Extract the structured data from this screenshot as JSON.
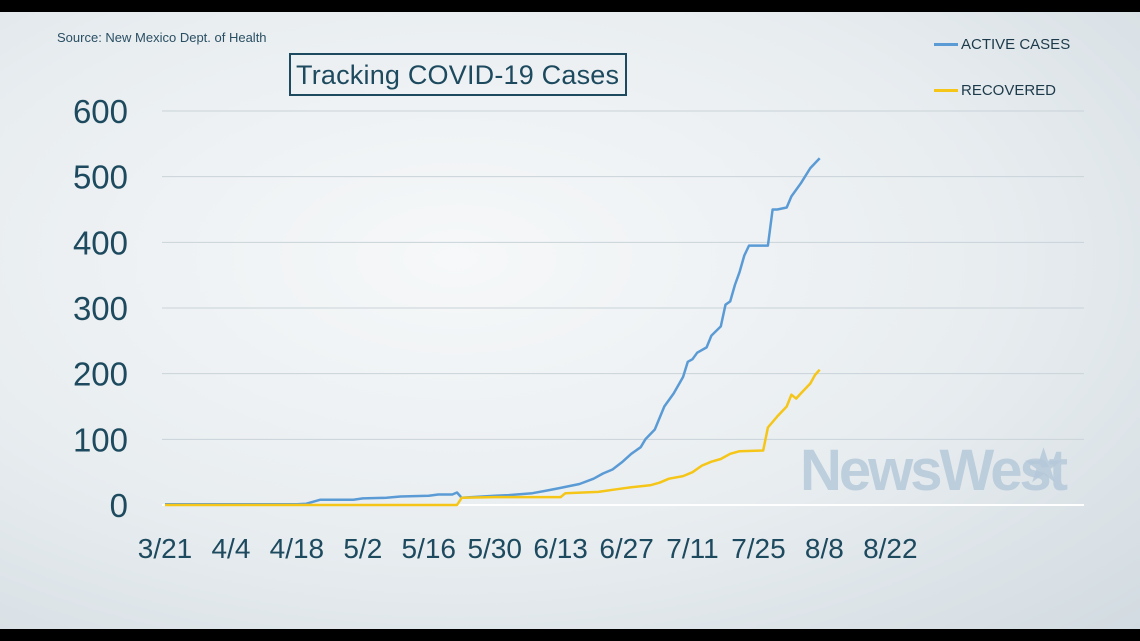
{
  "source": "Source: New Mexico Dept. of Health",
  "title": "Tracking COVID-19 Cases",
  "watermark": "NewsWest",
  "colors": {
    "active": "#5b9bd5",
    "recovered": "#f5c518",
    "axis_text": "#1d4a5e",
    "grid": "#ffffff"
  },
  "chart_data": {
    "type": "line",
    "x_ticks": [
      "3/21",
      "4/4",
      "4/18",
      "5/2",
      "5/16",
      "5/30",
      "6/13",
      "6/27",
      "7/11",
      "7/25",
      "8/8",
      "8/22"
    ],
    "y_ticks": [
      0,
      100,
      200,
      300,
      400,
      500,
      600
    ],
    "ylim": [
      0,
      600
    ],
    "legend_position": "top-right",
    "grid": true,
    "series": [
      {
        "name": "ACTIVE CASES",
        "color": "#5b9bd5",
        "points": [
          [
            "3/21",
            1
          ],
          [
            "4/4",
            1
          ],
          [
            "4/18",
            1
          ],
          [
            "4/20",
            2
          ],
          [
            "4/23",
            8
          ],
          [
            "4/30",
            8
          ],
          [
            "5/2",
            10
          ],
          [
            "5/7",
            11
          ],
          [
            "5/10",
            13
          ],
          [
            "5/16",
            14
          ],
          [
            "5/18",
            16
          ],
          [
            "5/21",
            16
          ],
          [
            "5/22",
            19
          ],
          [
            "5/23",
            11
          ],
          [
            "5/30",
            14
          ],
          [
            "6/2",
            15
          ],
          [
            "6/7",
            18
          ],
          [
            "6/10",
            22
          ],
          [
            "6/13",
            26
          ],
          [
            "6/17",
            32
          ],
          [
            "6/20",
            40
          ],
          [
            "6/22",
            48
          ],
          [
            "6/24",
            54
          ],
          [
            "6/26",
            65
          ],
          [
            "6/28",
            78
          ],
          [
            "6/30",
            88
          ],
          [
            "7/1",
            100
          ],
          [
            "7/3",
            115
          ],
          [
            "7/5",
            150
          ],
          [
            "7/7",
            170
          ],
          [
            "7/9",
            195
          ],
          [
            "7/10",
            218
          ],
          [
            "7/11",
            222
          ],
          [
            "7/12",
            232
          ],
          [
            "7/14",
            240
          ],
          [
            "7/15",
            258
          ],
          [
            "7/17",
            272
          ],
          [
            "7/18",
            305
          ],
          [
            "7/19",
            310
          ],
          [
            "7/20",
            335
          ],
          [
            "7/21",
            355
          ],
          [
            "7/22",
            380
          ],
          [
            "7/23",
            395
          ],
          [
            "7/27",
            395
          ],
          [
            "7/28",
            450
          ],
          [
            "7/29",
            450
          ],
          [
            "7/31",
            453
          ],
          [
            "8/1",
            470
          ],
          [
            "8/3",
            490
          ],
          [
            "8/5",
            513
          ],
          [
            "8/7",
            528
          ]
        ]
      },
      {
        "name": "RECOVERED",
        "color": "#f5c518",
        "points": [
          [
            "3/21",
            0
          ],
          [
            "4/18",
            0
          ],
          [
            "5/22",
            0
          ],
          [
            "5/23",
            11
          ],
          [
            "5/30",
            12
          ],
          [
            "6/13",
            12
          ],
          [
            "6/14",
            18
          ],
          [
            "6/21",
            20
          ],
          [
            "6/25",
            24
          ],
          [
            "6/28",
            27
          ],
          [
            "7/2",
            30
          ],
          [
            "7/4",
            34
          ],
          [
            "7/6",
            40
          ],
          [
            "7/9",
            44
          ],
          [
            "7/11",
            50
          ],
          [
            "7/13",
            60
          ],
          [
            "7/15",
            66
          ],
          [
            "7/17",
            70
          ],
          [
            "7/19",
            78
          ],
          [
            "7/21",
            82
          ],
          [
            "7/26",
            83
          ],
          [
            "7/27",
            118
          ],
          [
            "7/29",
            135
          ],
          [
            "7/31",
            150
          ],
          [
            "8/1",
            168
          ],
          [
            "8/2",
            162
          ],
          [
            "8/3",
            170
          ],
          [
            "8/5",
            185
          ],
          [
            "8/6",
            198
          ],
          [
            "8/7",
            206
          ]
        ]
      }
    ]
  }
}
